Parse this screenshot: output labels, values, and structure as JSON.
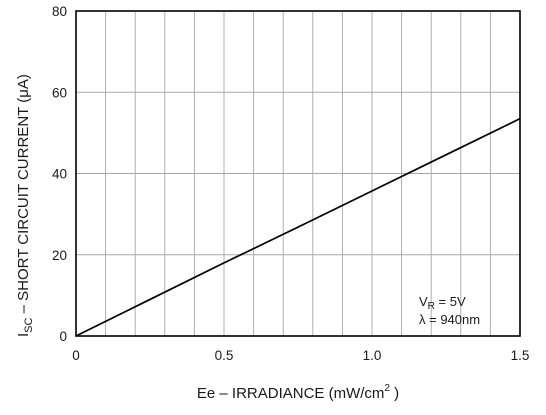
{
  "chart_data": {
    "type": "line",
    "title": "",
    "ylabel": {
      "main": "I",
      "sub": "SC",
      "rest": " – SHORT CIRCUIT CURRENT (μA)"
    },
    "xlabel": {
      "main": "Ee – IRRADIANCE (mW/cm",
      "sup": "2",
      "end": " )"
    },
    "xlim": [
      0,
      1.5
    ],
    "ylim": [
      0,
      80
    ],
    "x_ticks": [
      0,
      0.5,
      1.0,
      1.5
    ],
    "x_tick_labels": [
      "0",
      "0.5",
      "1.0",
      "1.5"
    ],
    "y_ticks": [
      0,
      20,
      40,
      60,
      80
    ],
    "y_tick_labels": [
      "0",
      "20",
      "40",
      "60",
      "80"
    ],
    "x_minor_step": 0.1,
    "y_minor_step": 20,
    "grid": true,
    "series": [
      {
        "x": [
          0,
          0.25,
          0.5,
          0.75,
          1.0,
          1.25,
          1.5
        ],
        "y": [
          0,
          9,
          18,
          26.8,
          35.7,
          44.6,
          53.5
        ],
        "color": "#000000"
      }
    ],
    "annotations": [
      {
        "main": "V",
        "sub": "R",
        "rest": " = 5V"
      },
      {
        "main": "λ = 940nm"
      }
    ]
  }
}
